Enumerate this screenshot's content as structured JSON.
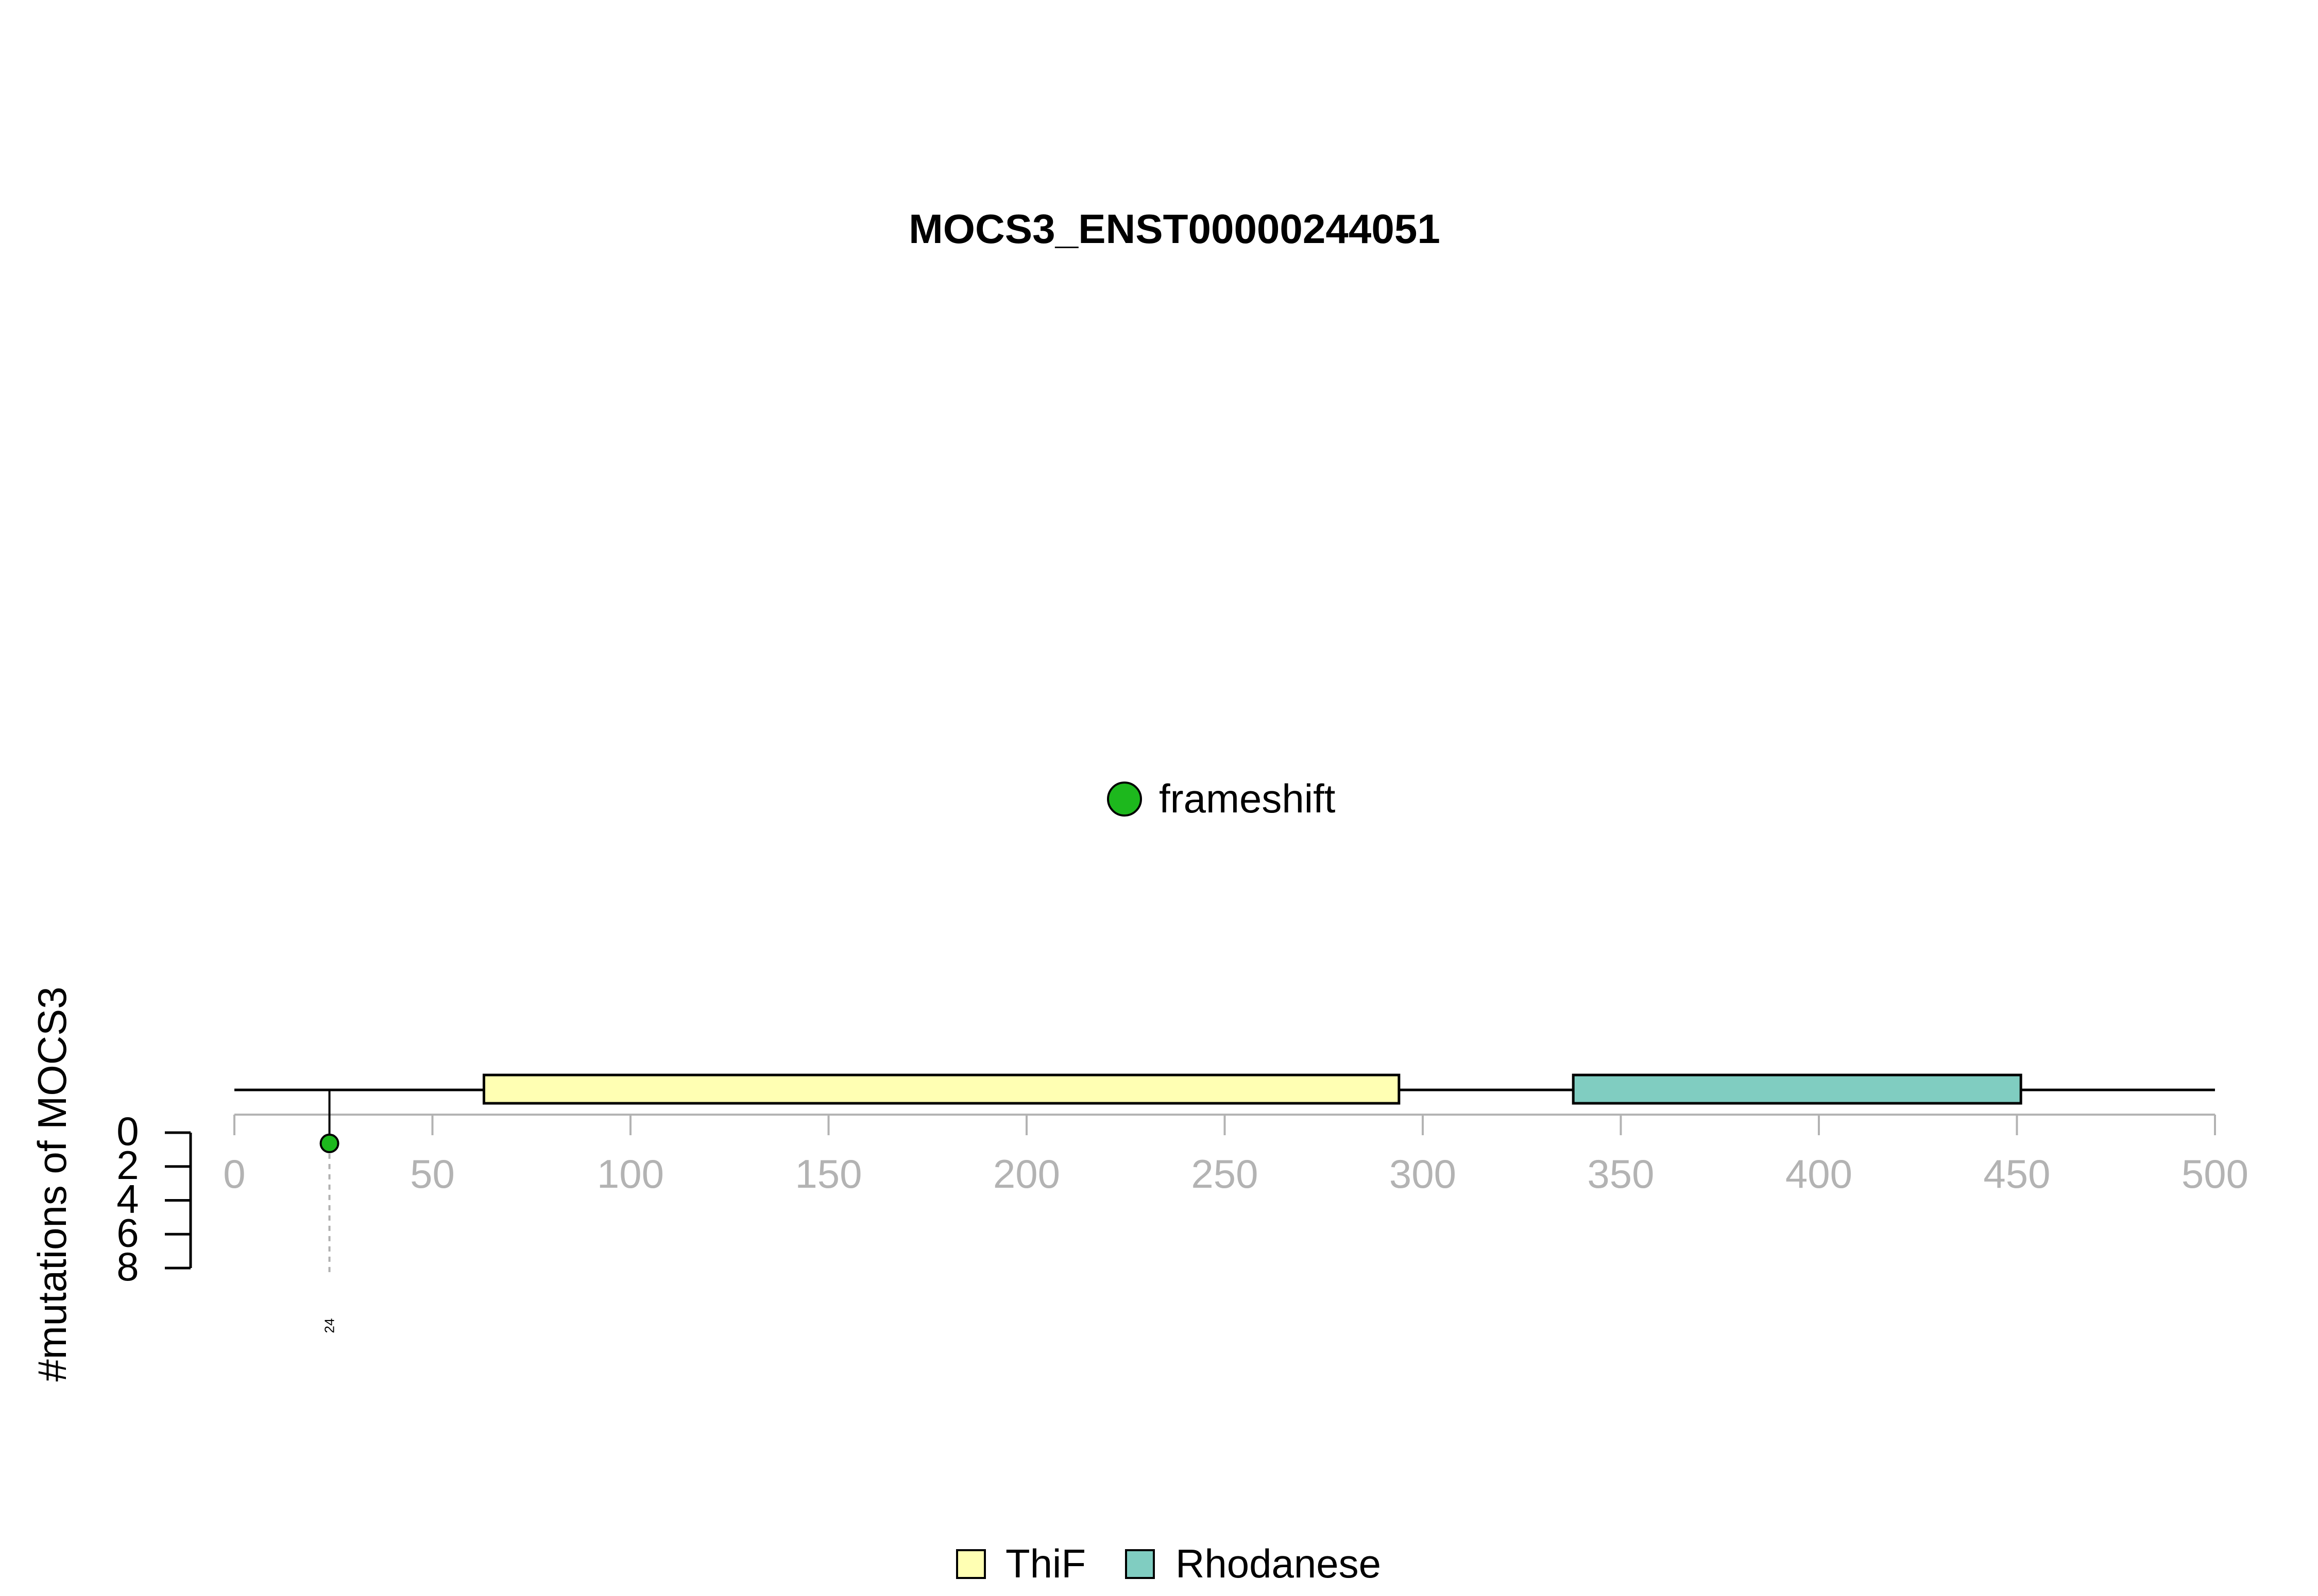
{
  "chart_data": {
    "type": "lollipop",
    "title": "MOCS3_ENST00000244051",
    "ylabel": "#mutations of MOCS3",
    "protein_length": 500,
    "xlim": [
      0,
      500
    ],
    "x_ticks": [
      0,
      50,
      100,
      150,
      200,
      250,
      300,
      350,
      400,
      450,
      500
    ],
    "ylim": [
      0,
      8
    ],
    "y_ticks": [
      0,
      2,
      4,
      6,
      8
    ],
    "domains": [
      {
        "name": "ThiF",
        "start": 63,
        "end": 294,
        "color": "#ffffb3"
      },
      {
        "name": "Rhodanese",
        "start": 338,
        "end": 451,
        "color": "#80cdc1"
      }
    ],
    "mutations": [
      {
        "position": 24,
        "count": 1,
        "type": "frameshift",
        "label": "24"
      }
    ],
    "mutation_types": [
      {
        "name": "frameshift",
        "color": "#1db81d"
      }
    ],
    "legend_position": "bottom-center"
  }
}
